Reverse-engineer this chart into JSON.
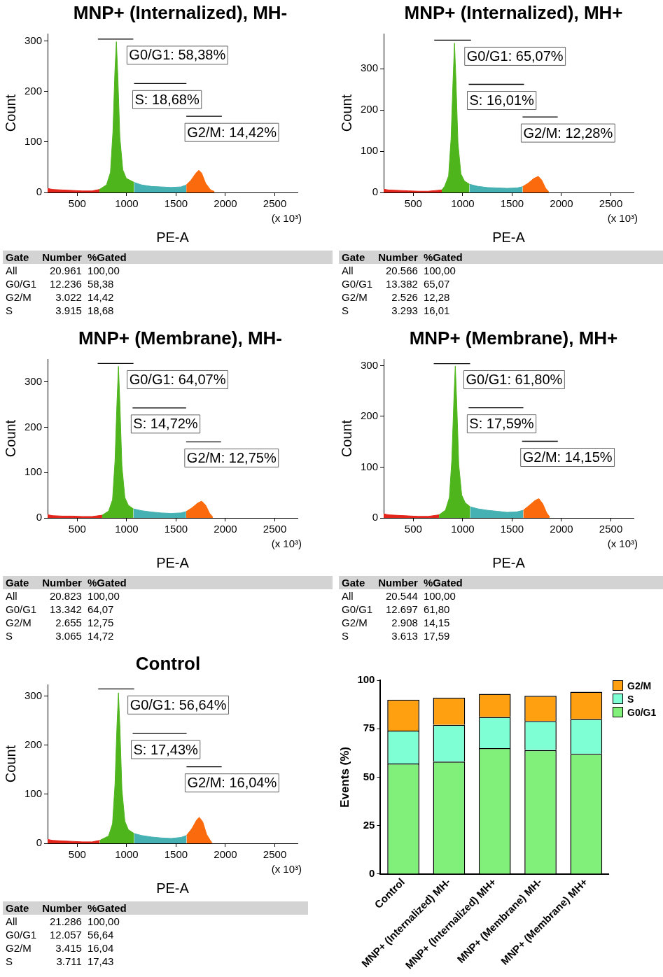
{
  "chart_data": [
    {
      "type": "area",
      "title": "MNP+ (Internalized), MH-",
      "xlabel": "PE-A",
      "ylabel": "Count",
      "xlim": [
        200,
        2730
      ],
      "xticks": [
        500,
        1000,
        1500,
        2000,
        2500
      ],
      "ylim": [
        0,
        315
      ],
      "yticks": [
        0,
        100,
        200,
        300
      ],
      "grid": false,
      "legend": false,
      "marker": "none",
      "series": [
        {
          "color": "#e3241b",
          "x": [
            200,
            250,
            350,
            450,
            550,
            650,
            724
          ],
          "values": [
            8,
            6,
            5,
            4,
            3,
            3,
            6
          ]
        },
        {
          "color": "#4fb51d",
          "x": [
            724,
            796,
            836,
            861,
            881,
            896,
            911,
            931,
            961,
            996,
            1075
          ],
          "values": [
            6,
            15,
            40,
            120,
            240,
            299,
            230,
            110,
            45,
            28,
            20
          ]
        },
        {
          "color": "#46b1b3",
          "x": [
            1075,
            1150,
            1250,
            1350,
            1450,
            1550,
            1604
          ],
          "values": [
            20,
            15,
            12,
            11,
            10,
            11,
            15
          ]
        },
        {
          "color": "#fb6a0c",
          "x": [
            1604,
            1650,
            1700,
            1731,
            1760,
            1800,
            1850,
            1888
          ],
          "values": [
            15,
            24,
            38,
            44,
            38,
            18,
            5,
            2
          ]
        },
        {
          "type": "line",
          "color": "#000000",
          "x": [
            709,
            1067
          ],
          "values": [
            304,
            304
          ]
        },
        {
          "type": "line",
          "color": "#000000",
          "x": [
            1075,
            1605
          ],
          "values": [
            216,
            216
          ]
        },
        {
          "type": "line",
          "color": "#000000",
          "x": [
            1604,
            1964
          ],
          "values": [
            151,
            151
          ]
        }
      ],
      "annotations": [
        "G0/G1: 58,38%",
        "S: 18,68%",
        "G2/M: 14,42%",
        "(x 10³)",
        "Gate",
        "Number",
        "%Gated",
        "All",
        "20.961",
        "100,00",
        "G0/G1",
        "12.236",
        "58,38",
        "G2/M",
        "3.022",
        "14,42",
        "S",
        "3.915",
        "18,68"
      ]
    },
    {
      "type": "area",
      "title": "MNP+ (Internalized), MH+",
      "xlabel": "PE-A",
      "ylabel": "Count",
      "xlim": [
        200,
        2730
      ],
      "xticks": [
        500,
        1000,
        1500,
        2000,
        2500
      ],
      "ylim": [
        0,
        385
      ],
      "yticks": [
        0,
        100,
        200,
        300
      ],
      "grid": false,
      "legend": false,
      "marker": "none",
      "series": [
        {
          "color": "#e3241b",
          "x": [
            200,
            250,
            350,
            450,
            550,
            650,
            788
          ],
          "values": [
            8,
            6,
            5,
            4,
            3,
            3,
            6
          ]
        },
        {
          "color": "#4fb51d",
          "x": [
            788,
            817,
            857,
            882,
            902,
            917,
            932,
            952,
            982,
            1017,
            1068
          ],
          "values": [
            6,
            15,
            40,
            130,
            270,
            362,
            270,
            120,
            45,
            28,
            20
          ]
        },
        {
          "color": "#46b1b3",
          "x": [
            1068,
            1150,
            1250,
            1350,
            1450,
            1550,
            1606
          ],
          "values": [
            20,
            15,
            12,
            11,
            10,
            11,
            14
          ]
        },
        {
          "color": "#fb6a0c",
          "x": [
            1606,
            1660,
            1720,
            1765,
            1800,
            1840,
            1871
          ],
          "values": [
            14,
            22,
            34,
            39,
            30,
            10,
            2
          ]
        },
        {
          "type": "line",
          "color": "#000000",
          "x": [
            712,
            1084
          ],
          "values": [
            369,
            369
          ]
        },
        {
          "type": "line",
          "color": "#000000",
          "x": [
            1061,
            1621
          ],
          "values": [
            262,
            262
          ]
        },
        {
          "type": "line",
          "color": "#000000",
          "x": [
            1606,
            1962
          ],
          "values": [
            183,
            183
          ]
        }
      ],
      "annotations": [
        "G0/G1: 65,07%",
        "S: 16,01%",
        "G2/M: 12,28%",
        "(x 10³)",
        "Gate",
        "Number",
        "%Gated",
        "All",
        "20.566",
        "100,00",
        "G0/G1",
        "13.382",
        "65,07",
        "G2/M",
        "2.526",
        "12,28",
        "S",
        "3.293",
        "16,01"
      ]
    },
    {
      "type": "area",
      "title": "MNP+ (Membrane), MH-",
      "xlabel": "PE-A",
      "ylabel": "Count",
      "xlim": [
        200,
        2730
      ],
      "xticks": [
        500,
        1000,
        1500,
        2000,
        2500
      ],
      "ylim": [
        0,
        351
      ],
      "yticks": [
        0,
        100,
        200,
        300
      ],
      "grid": false,
      "legend": false,
      "marker": "none",
      "series": [
        {
          "color": "#e3241b",
          "x": [
            200,
            250,
            350,
            450,
            550,
            650,
            752
          ],
          "values": [
            7,
            5,
            4,
            4,
            3,
            3,
            6
          ]
        },
        {
          "color": "#4fb51d",
          "x": [
            752,
            817,
            857,
            882,
            902,
            917,
            932,
            952,
            982,
            1017,
            1068
          ],
          "values": [
            6,
            15,
            40,
            125,
            255,
            335,
            250,
            115,
            45,
            28,
            20
          ]
        },
        {
          "color": "#46b1b3",
          "x": [
            1068,
            1150,
            1250,
            1350,
            1450,
            1550,
            1602
          ],
          "values": [
            20,
            16,
            13,
            11,
            10,
            11,
            14
          ]
        },
        {
          "color": "#fb6a0c",
          "x": [
            1602,
            1660,
            1720,
            1760,
            1800,
            1840,
            1872
          ],
          "values": [
            14,
            22,
            33,
            37,
            28,
            10,
            2
          ]
        },
        {
          "type": "line",
          "color": "#000000",
          "x": [
            707,
            1069
          ],
          "values": [
            341,
            341
          ]
        },
        {
          "type": "line",
          "color": "#000000",
          "x": [
            1060,
            1602
          ],
          "values": [
            243,
            243
          ]
        },
        {
          "type": "line",
          "color": "#000000",
          "x": [
            1602,
            1956
          ],
          "values": [
            168,
            168
          ]
        }
      ],
      "annotations": [
        "G0/G1: 64,07%",
        "S: 14,72%",
        "G2/M: 12,75%",
        "(x 10³)",
        "Gate",
        "Number",
        "%Gated",
        "All",
        "20.823",
        "100,00",
        "G0/G1",
        "13.342",
        "64,07",
        "G2/M",
        "2.655",
        "12,75",
        "S",
        "3.065",
        "14,72"
      ]
    },
    {
      "type": "area",
      "title": "MNP+ (Membrane), MH+",
      "xlabel": "PE-A",
      "ylabel": "Count",
      "xlim": [
        200,
        2730
      ],
      "xticks": [
        500,
        1000,
        1500,
        2000,
        2500
      ],
      "ylim": [
        0,
        313
      ],
      "yticks": [
        0,
        100,
        200,
        300
      ],
      "grid": false,
      "legend": false,
      "marker": "none",
      "series": [
        {
          "color": "#e3241b",
          "x": [
            200,
            250,
            350,
            450,
            550,
            650,
            760
          ],
          "values": [
            8,
            6,
            5,
            4,
            3,
            3,
            6
          ]
        },
        {
          "color": "#4fb51d",
          "x": [
            760,
            825,
            865,
            890,
            910,
            925,
            940,
            960,
            990,
            1025,
            1075
          ],
          "values": [
            6,
            15,
            40,
            115,
            230,
            299,
            225,
            105,
            45,
            30,
            22
          ]
        },
        {
          "color": "#46b1b3",
          "x": [
            1075,
            1150,
            1250,
            1350,
            1450,
            1550,
            1613
          ],
          "values": [
            22,
            18,
            15,
            13,
            11,
            12,
            15
          ]
        },
        {
          "color": "#fb6a0c",
          "x": [
            1613,
            1670,
            1730,
            1771,
            1810,
            1850,
            1880
          ],
          "values": [
            15,
            24,
            34,
            38,
            28,
            10,
            2
          ]
        },
        {
          "type": "line",
          "color": "#000000",
          "x": [
            707,
            1075
          ],
          "values": [
            304,
            304
          ]
        },
        {
          "type": "line",
          "color": "#000000",
          "x": [
            1060,
            1614
          ],
          "values": [
            217,
            217
          ]
        },
        {
          "type": "line",
          "color": "#000000",
          "x": [
            1601,
            1963
          ],
          "values": [
            151,
            151
          ]
        }
      ],
      "annotations": [
        "G0/G1: 61,80%",
        "S: 17,59%",
        "G2/M: 14,15%",
        "(x 10³)",
        "Gate",
        "Number",
        "%Gated",
        "All",
        "20.544",
        "100,00",
        "G0/G1",
        "12.697",
        "61,80",
        "G2/M",
        "2.908",
        "14,15",
        "S",
        "3.613",
        "17,59"
      ]
    },
    {
      "type": "area",
      "title": "Control",
      "xlabel": "PE-A",
      "ylabel": "Count",
      "xlim": [
        200,
        2730
      ],
      "xticks": [
        500,
        1000,
        1500,
        2000,
        2500
      ],
      "ylim": [
        0,
        324
      ],
      "yticks": [
        0,
        100,
        200,
        300
      ],
      "grid": false,
      "legend": false,
      "marker": "none",
      "series": [
        {
          "color": "#e3241b",
          "x": [
            200,
            250,
            350,
            450,
            550,
            650,
            727
          ],
          "values": [
            8,
            6,
            5,
            4,
            3,
            3,
            6
          ]
        },
        {
          "color": "#4fb51d",
          "x": [
            727,
            817,
            857,
            882,
            902,
            917,
            932,
            952,
            982,
            1017,
            1076
          ],
          "values": [
            6,
            15,
            40,
            120,
            240,
            307,
            235,
            110,
            45,
            28,
            20
          ]
        },
        {
          "color": "#46b1b3",
          "x": [
            1076,
            1150,
            1250,
            1350,
            1450,
            1550,
            1606
          ],
          "values": [
            20,
            16,
            13,
            11,
            10,
            12,
            16
          ]
        },
        {
          "color": "#fb6a0c",
          "x": [
            1606,
            1660,
            1710,
            1735,
            1770,
            1810,
            1850,
            1864
          ],
          "values": [
            16,
            30,
            48,
            53,
            44,
            18,
            5,
            2
          ]
        },
        {
          "type": "line",
          "color": "#000000",
          "x": [
            712,
            1076
          ],
          "values": [
            315,
            315
          ]
        },
        {
          "type": "line",
          "color": "#000000",
          "x": [
            1061,
            1607
          ],
          "values": [
            224,
            224
          ]
        },
        {
          "type": "line",
          "color": "#000000",
          "x": [
            1606,
            1962
          ],
          "values": [
            156,
            156
          ]
        }
      ],
      "annotations": [
        "G0/G1: 56,64%",
        "S: 17,43%",
        "G2/M: 16,04%",
        "(x 10³)",
        "Gate",
        "Number",
        "%Gated",
        "All",
        "21.286",
        "100,00",
        "G0/G1",
        "12.057",
        "56,64",
        "G2/M",
        "3.415",
        "16,04",
        "S",
        "3.711",
        "17,43"
      ]
    },
    {
      "type": "bar",
      "stacked": true,
      "ylabel": "Events (%)",
      "ylim": [
        0,
        100
      ],
      "yticks": [
        0,
        25,
        50,
        75,
        100
      ],
      "grid": false,
      "legend": "top right",
      "categories": [
        "Control",
        "MNP+ (Internalized) MH-",
        "MNP+ (Internalized) MH+",
        "MNP+ (Membrane) MH-",
        "MNP+ (Membrane) MH+"
      ],
      "series": [
        {
          "name": "G0/G1",
          "color": "#80f07a",
          "values": [
            57,
            58,
            65,
            64,
            62
          ]
        },
        {
          "name": "S",
          "color": "#7fffd4",
          "values": [
            17,
            19,
            16,
            15,
            18
          ]
        },
        {
          "name": "G2/M",
          "color": "#ffa010",
          "values": [
            16,
            14,
            12,
            13,
            14
          ]
        }
      ]
    }
  ]
}
